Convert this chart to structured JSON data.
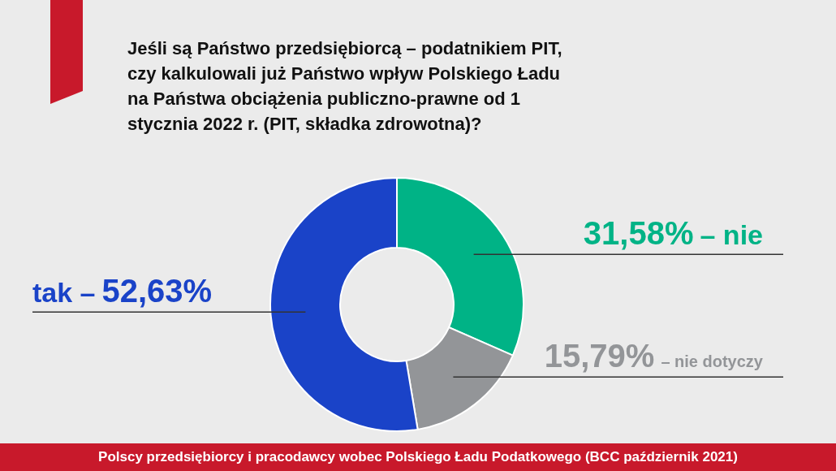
{
  "chart_data": {
    "type": "donut",
    "title": "Jeśli są Państwo przedsiębiorcą – podatnikiem PIT, czy kalkulowali już Państwo wpływ Polskiego Ładu na Państwa obciążenia publiczno-prawne od 1 stycznia 2022 r. (PIT, składka zdrowotna)?",
    "categories": [
      "– nie",
      "– nie dotyczy",
      "tak –"
    ],
    "values": [
      31.58,
      15.79,
      52.63
    ],
    "colors": [
      "#00b386",
      "#939598",
      "#1a43c8"
    ],
    "value_labels": [
      "31,58%",
      "15,79%",
      "52,63%"
    ],
    "annotations": [
      "Polscy przedsiębiorcy i pracodawcy wobec Polskiego Ładu Podatkowego (BCC październik 2021)"
    ]
  }
}
